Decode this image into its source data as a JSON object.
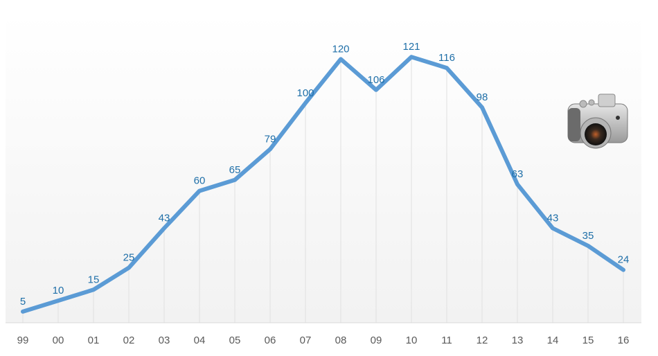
{
  "chart_data": {
    "type": "line",
    "title": "",
    "xlabel": "",
    "ylabel": "",
    "categories": [
      "99",
      "00",
      "01",
      "02",
      "03",
      "04",
      "05",
      "06",
      "07",
      "08",
      "09",
      "10",
      "11",
      "12",
      "13",
      "14",
      "15",
      "16"
    ],
    "values": [
      5,
      10,
      15,
      25,
      43,
      60,
      65,
      79,
      100,
      120,
      106,
      121,
      116,
      98,
      63,
      43,
      35,
      24
    ],
    "series": [
      {
        "name": "",
        "values": [
          5,
          10,
          15,
          25,
          43,
          60,
          65,
          79,
          100,
          120,
          106,
          121,
          116,
          98,
          63,
          43,
          35,
          24
        ],
        "color": "#5b9bd5"
      }
    ],
    "ylim": [
      0,
      130
    ],
    "grid": "vertical",
    "legend": "none",
    "data_labels": true,
    "annotation_icon": "camera-icon"
  },
  "colors": {
    "line": "#5b9bd5",
    "label": "#1f6fa8",
    "tick": "#595959",
    "grid": "#e0e0e0"
  }
}
